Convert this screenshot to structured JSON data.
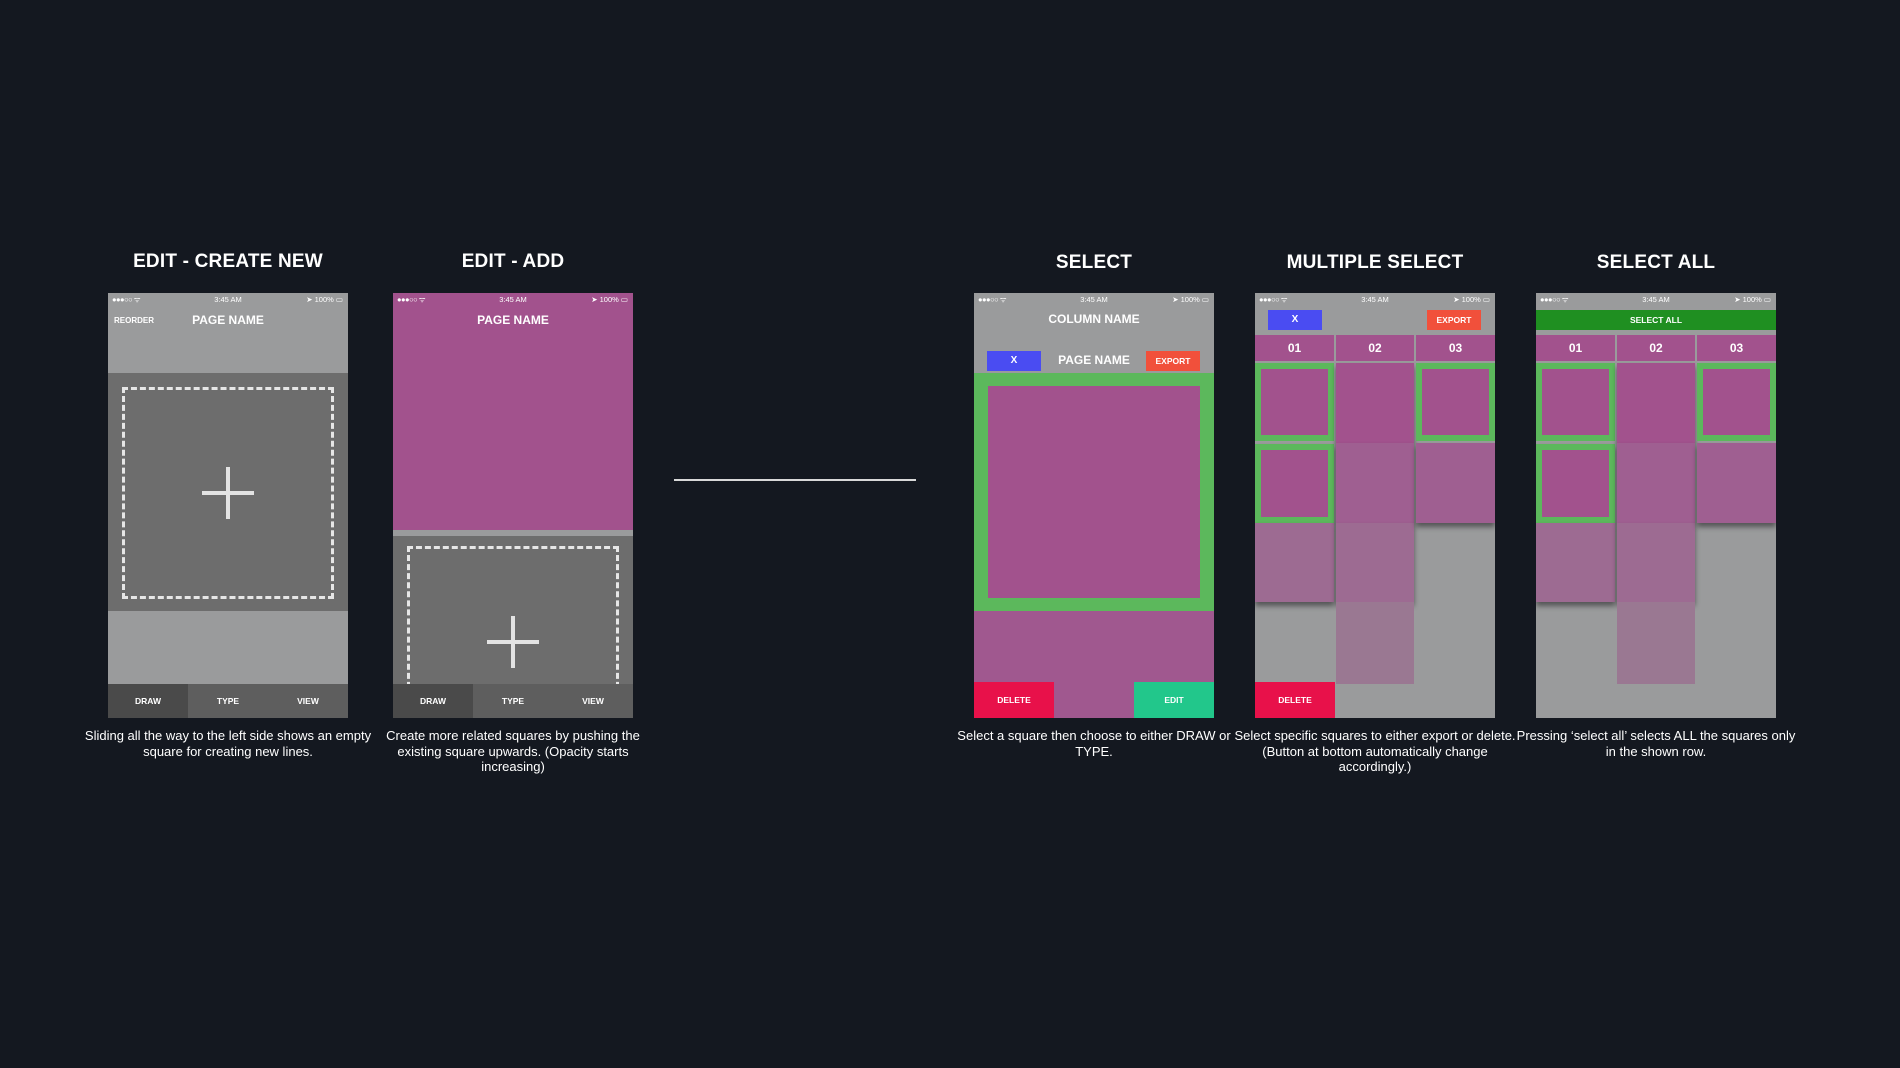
{
  "panels": {
    "edit_create_new": {
      "title": "EDIT - CREATE NEW",
      "status": {
        "signal": "●●●○○ ᯤ",
        "time": "3:45 AM",
        "battery": "➤ 100% ▭"
      },
      "reorder_label": "REORDER",
      "page_name": "PAGE NAME",
      "tabs": [
        "DRAW",
        "TYPE",
        "VIEW"
      ],
      "caption": "Sliding all the way to the left side shows an empty square for creating new lines."
    },
    "edit_add": {
      "title": "EDIT - ADD",
      "status": {
        "signal": "●●●○○ ᯤ",
        "time": "3:45 AM",
        "battery": "➤ 100% ▭"
      },
      "page_name": "PAGE NAME",
      "tabs": [
        "DRAW",
        "TYPE",
        "VIEW"
      ],
      "caption": "Create more related squares by pushing the existing square upwards. (Opacity starts increasing)"
    },
    "select": {
      "title": "SELECT",
      "status": {
        "signal": "●●●○○ ᯤ",
        "time": "3:45 AM",
        "battery": "➤ 100% ▭"
      },
      "column_name": "COLUMN NAME",
      "close_label": "X",
      "page_name": "PAGE NAME",
      "export_label": "EXPORT",
      "delete_label": "DELETE",
      "edit_label": "EDIT",
      "caption": "Select a square then choose to either DRAW or TYPE."
    },
    "multiple_select": {
      "title": "MULTIPLE SELECT",
      "status": {
        "signal": "●●●○○ ᯤ",
        "time": "3:45 AM",
        "battery": "➤ 100% ▭"
      },
      "close_label": "X",
      "export_label": "EXPORT",
      "columns": [
        "01",
        "02",
        "03"
      ],
      "delete_label": "DELETE",
      "caption": "Select specific squares to either export or delete. (Button at bottom automatically change accordingly.)"
    },
    "select_all": {
      "title": "SELECT ALL",
      "status": {
        "signal": "●●●○○ ᯤ",
        "time": "3:45 AM",
        "battery": "➤ 100% ▭"
      },
      "select_all_label": "SELECT ALL",
      "columns": [
        "01",
        "02",
        "03"
      ],
      "caption": "Pressing ‘select all’ selects ALL the squares only in the shown row."
    }
  },
  "colors": {
    "background": "#141820",
    "phone_gray": "#9a9b9c",
    "magenta": "#a2528d",
    "selection_green": "#5cb85c",
    "blue_button": "#4a4cf2",
    "export_red": "#f1503b",
    "delete_red": "#e8114a",
    "edit_green": "#22c78b",
    "select_all_green": "#1f8f21"
  }
}
